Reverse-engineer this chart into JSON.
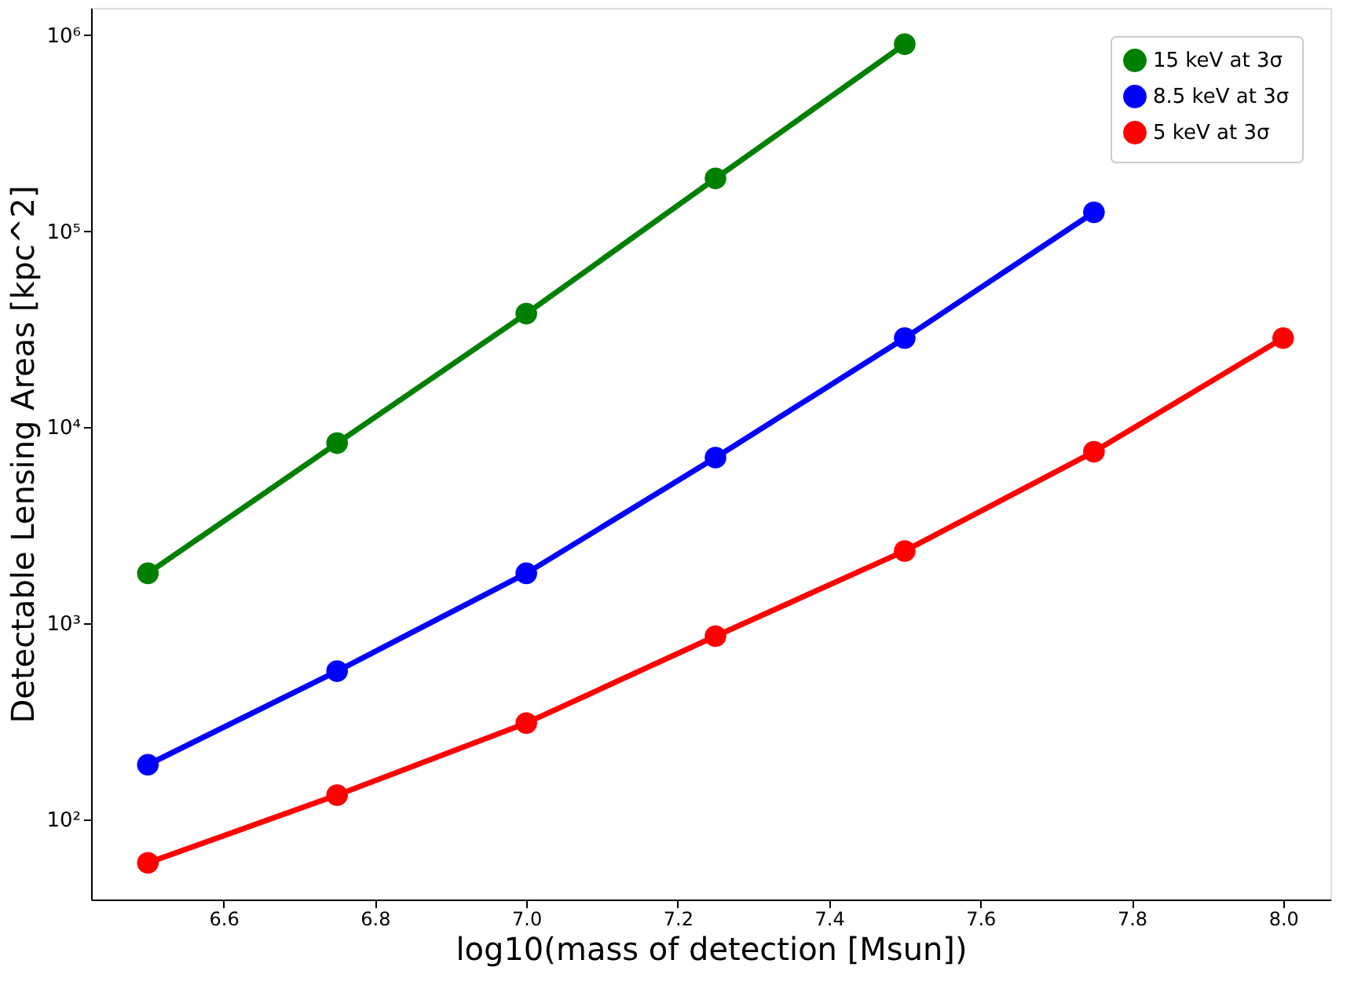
{
  "chart_data": {
    "type": "line",
    "xlabel": "log10(mass of detection [Msun])",
    "ylabel": "Detectable Lensing Areas [kpc^2]",
    "x": [
      6.5,
      6.75,
      7.0,
      7.25,
      7.5,
      7.75,
      8.0
    ],
    "series": [
      {
        "name": "15 keV at 3σ",
        "color": "#008000",
        "values": [
          1800,
          8300,
          38000,
          186000,
          900000,
          null,
          null
        ]
      },
      {
        "name": "8.5 keV at 3σ",
        "color": "#0000ff",
        "values": [
          190,
          570,
          1800,
          7000,
          28500,
          125000,
          null
        ]
      },
      {
        "name": "5 keV at 3σ",
        "color": "#ff0000",
        "values": [
          60,
          133,
          310,
          860,
          2340,
          7500,
          28500
        ]
      }
    ],
    "log": "y",
    "marker": "circle",
    "line_style": "solid",
    "legend": "top right",
    "grid": false,
    "xlim": [
      6.425,
      8.0625
    ],
    "xticks": [
      6.6,
      6.8,
      {
        "value": 7,
        "label": "7.0"
      },
      7.2,
      7.4,
      7.6,
      7.8,
      {
        "value": 8,
        "label": "8.0"
      }
    ],
    "ylim": [
      39,
      1380000
    ],
    "yticks": [
      {
        "value": 100,
        "label": "10²"
      },
      {
        "value": 1000,
        "label": "10³"
      },
      {
        "value": 10000,
        "label": "10⁴"
      },
      {
        "value": 100000,
        "label": "10⁵"
      },
      {
        "value": 1000000,
        "label": "10⁶"
      }
    ]
  }
}
